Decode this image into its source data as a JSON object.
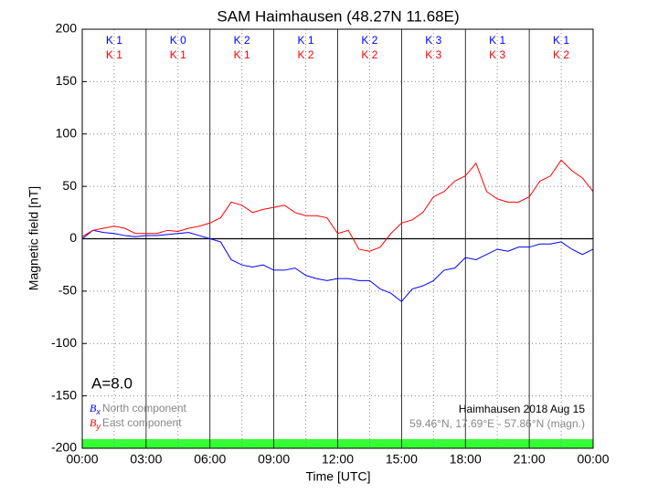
{
  "chart_data": {
    "type": "line",
    "title": "SAM Haimhausen (48.27N 11.68E)",
    "xlabel": "Time [UTC]",
    "ylabel": "Magnetic field [nT]",
    "x": [
      0,
      0.5,
      1,
      1.5,
      2,
      2.5,
      3,
      3.5,
      4,
      4.5,
      5,
      5.5,
      6,
      6.5,
      7,
      7.5,
      8,
      8.5,
      9,
      9.5,
      10,
      10.5,
      11,
      11.5,
      12,
      12.5,
      13,
      13.5,
      14,
      14.5,
      15,
      15.5,
      16,
      16.5,
      17,
      17.5,
      18,
      18.5,
      19,
      19.5,
      20,
      20.5,
      21,
      21.5,
      22,
      22.5,
      23,
      23.5,
      24
    ],
    "series": [
      {
        "name": "North component",
        "symbol": "B",
        "subscript": "x",
        "color": "#0000ff",
        "values": [
          0,
          8,
          6,
          5,
          3,
          2,
          3,
          3,
          4,
          5,
          6,
          3,
          0,
          -3,
          -20,
          -25,
          -27,
          -25,
          -30,
          -30,
          -28,
          -35,
          -38,
          -40,
          -38,
          -38,
          -40,
          -40,
          -48,
          -52,
          -60,
          -48,
          -45,
          -40,
          -30,
          -28,
          -18,
          -20,
          -15,
          -10,
          -12,
          -8,
          -8,
          -5,
          -5,
          -3,
          -10,
          -15,
          -10
        ]
      },
      {
        "name": "East component",
        "symbol": "B",
        "subscript": "y",
        "color": "#ff0000",
        "values": [
          2,
          8,
          10,
          12,
          10,
          5,
          5,
          5,
          8,
          7,
          10,
          12,
          15,
          20,
          35,
          32,
          25,
          28,
          30,
          32,
          25,
          22,
          22,
          20,
          5,
          8,
          -10,
          -12,
          -8,
          5,
          15,
          18,
          25,
          40,
          45,
          55,
          60,
          72,
          45,
          38,
          35,
          35,
          40,
          55,
          60,
          75,
          65,
          58,
          45
        ]
      }
    ],
    "xlim": [
      0,
      24
    ],
    "xticks": [
      {
        "value": 0,
        "label": "00:00"
      },
      {
        "value": 3,
        "label": "03:00"
      },
      {
        "value": 6,
        "label": "06:00"
      },
      {
        "value": 9,
        "label": "09:00"
      },
      {
        "value": 12,
        "label": "12:00"
      },
      {
        "value": 15,
        "label": "15:00"
      },
      {
        "value": 18,
        "label": "18:00"
      },
      {
        "value": 21,
        "label": "21:00"
      },
      {
        "value": 24,
        "label": "00:00"
      }
    ],
    "ylim": [
      -200,
      200
    ],
    "yticks": [
      -200,
      -150,
      -100,
      -50,
      0,
      50,
      100,
      150,
      200
    ],
    "grid": true,
    "k_north": [
      "K 1",
      "K 0",
      "K 2",
      "K 1",
      "K 2",
      "K 3",
      "K 1",
      "K 1"
    ],
    "k_east": [
      "K 1",
      "K 1",
      "K 1",
      "K 2",
      "K 2",
      "K 3",
      "K 3",
      "K 2"
    ],
    "a_index": "A=8.0",
    "station_note": "Haimhausen 2018 Aug 15",
    "coords_note": "59.46°N, 17.69°E - 57.86°N (magn.)"
  }
}
